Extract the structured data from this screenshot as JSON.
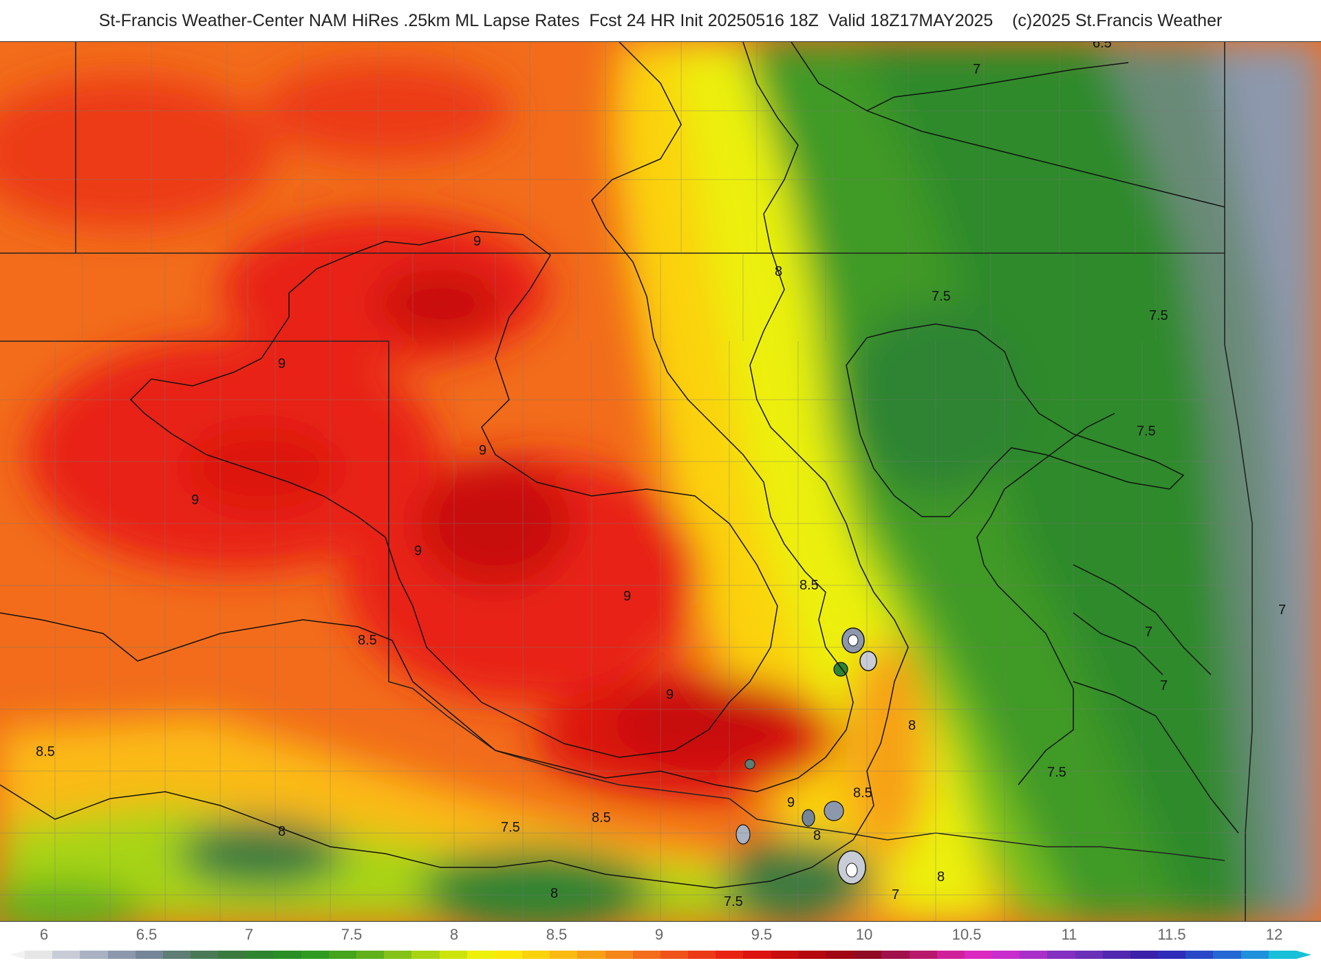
{
  "title": "St-Francis Weather-Center NAM HiRes .25km ML Lapse Rates  Fcst 24 HR Init 20250516 18Z  Valid 18Z17MAY2025    (c)2025 St.Francis Weather",
  "contour_labels": [
    "9",
    "9",
    "9",
    "9",
    "9",
    "9",
    "9",
    "9",
    "8.5",
    "8.5",
    "8.5",
    "8.5",
    "8.5",
    "8",
    "8",
    "8",
    "8",
    "8",
    "8",
    "7.5",
    "7.5",
    "7.5",
    "7.5",
    "7.5",
    "7.5",
    "7",
    "7",
    "7",
    "7",
    "7",
    "6.5"
  ],
  "colorbar": {
    "ticks": [
      "6",
      "6.5",
      "7",
      "7.5",
      "8",
      "8.5",
      "9",
      "9.5",
      "10",
      "10.5",
      "11",
      "11.5",
      "12"
    ],
    "colors": [
      "#e6e6e6",
      "#c8ccd6",
      "#a9b2c2",
      "#8d98ac",
      "#748697",
      "#5e7d74",
      "#4a7a55",
      "#3b7a3f",
      "#2f8430",
      "#2a8e24",
      "#2f9a20",
      "#44a51c",
      "#5fb01a",
      "#84c219",
      "#a8d414",
      "#cde40c",
      "#ecf00a",
      "#fbe80a",
      "#fbd20c",
      "#fbba12",
      "#f7a015",
      "#f5861a",
      "#f26c1b",
      "#ef531a",
      "#ec3a16",
      "#e82312",
      "#dc130f",
      "#c80d0d",
      "#b4080e",
      "#a00712",
      "#900a24",
      "#a0104a",
      "#b8186c",
      "#d0209a",
      "#dc28c0",
      "#c82ccc",
      "#a830c8",
      "#8430c0",
      "#6a30b8",
      "#5028b0",
      "#3a20a8",
      "#2e2cb8",
      "#2848c8",
      "#2468d4",
      "#1f90dc",
      "#17c0d8"
    ]
  }
}
